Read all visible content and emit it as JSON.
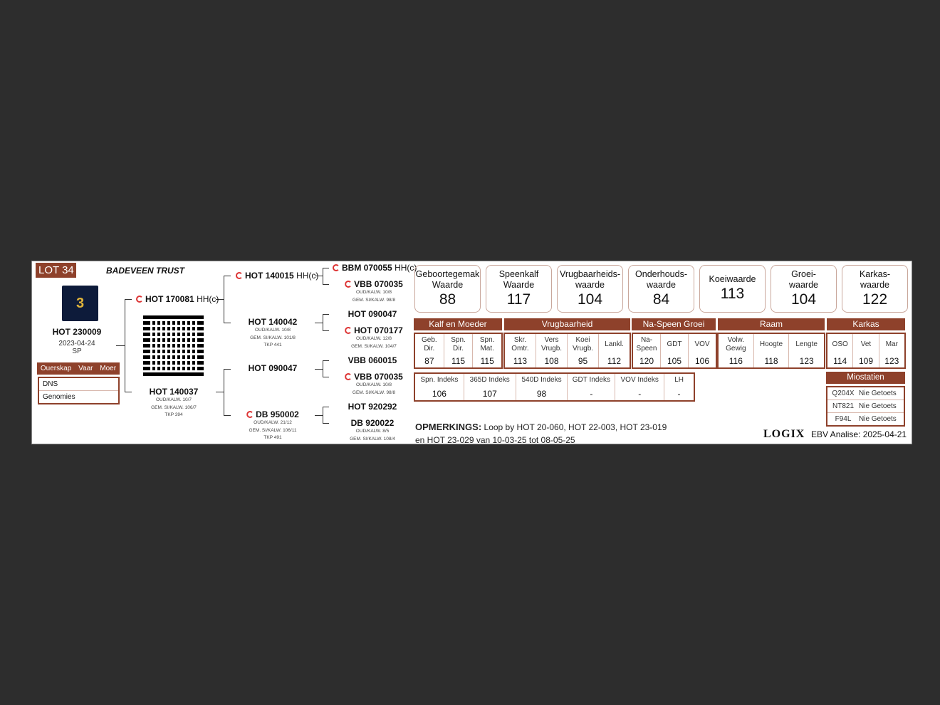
{
  "lot": "LOT 34",
  "owner": "BADEVEEN TRUST",
  "animal": {
    "id": "HOT 230009",
    "date": "2023-04-24",
    "code": "SP"
  },
  "parentage": {
    "header": [
      "Ouerskap",
      "Vaar",
      "Moer"
    ],
    "rows": [
      "DNS",
      "Genomies"
    ]
  },
  "pedigree": {
    "sire": {
      "id": "HOT 170081",
      "hh": "HH(c)"
    },
    "dam": {
      "id": "HOT 140037",
      "l1": "OUD/KALW. 10/7",
      "l2": "GEM. SI/KALW. 106/7",
      "l3": "TKP 394"
    },
    "ss": {
      "id": "HOT 140015",
      "hh": "HH(c)"
    },
    "sd": {
      "id": "HOT 140042",
      "l1": "OUD/KALW. 10/8",
      "l2": "GEM. SI/KALW. 101/8",
      "l3": "TKP 441"
    },
    "ds": {
      "id": "HOT 090047"
    },
    "dd": {
      "id": "DB 950002",
      "l1": "OUD/KALW. 21/12",
      "l2": "GEM. SI/KALW. 106/11",
      "l3": "TKP 491"
    },
    "sss": {
      "id": "BBM 070055",
      "hh": "HH(c)"
    },
    "ssd": {
      "id": "VBB 070035",
      "l1": "OUD/KALW. 10/8",
      "l2": "GEM. SI/KALW. 98/8"
    },
    "sds": {
      "id": "HOT 090047"
    },
    "sdd": {
      "id": "HOT 070177",
      "l1": "OUD/KALW. 12/8",
      "l2": "GEM. SI/KALW. 104/7"
    },
    "dss": {
      "id": "VBB 060015"
    },
    "dsd": {
      "id": "VBB 070035",
      "l1": "OUD/KALW. 10/8",
      "l2": "GEM. SI/KALW. 98/8"
    },
    "dds": {
      "id": "HOT 920292"
    },
    "ddd": {
      "id": "DB 920022",
      "l1": "OUD/KALW. 8/5",
      "l2": "GEM. SI/KALW. 108/4"
    }
  },
  "summary": [
    {
      "l1": "Geboortegemak",
      "l2": "Waarde",
      "v": "88"
    },
    {
      "l1": "Speenkalf",
      "l2": "Waarde",
      "v": "117"
    },
    {
      "l1": "Vrugbaarheids-",
      "l2": "waarde",
      "v": "104"
    },
    {
      "l1": "Onderhouds-",
      "l2": "waarde",
      "v": "84"
    },
    {
      "l1": "Koeiwaarde",
      "l2": "",
      "v": "113"
    },
    {
      "l1": "Groei-",
      "l2": "waarde",
      "v": "104"
    },
    {
      "l1": "Karkas-",
      "l2": "waarde",
      "v": "122"
    }
  ],
  "groups": [
    "Kalf en Moeder",
    "Vrugbaarheid",
    "Na-Speen Groei",
    "Raam",
    "Karkas"
  ],
  "traits": [
    [
      {
        "l": "Geb. Dir.",
        "v": "87"
      },
      {
        "l": "Spn. Dir.",
        "v": "115"
      },
      {
        "l": "Spn. Mat.",
        "v": "115"
      }
    ],
    [
      {
        "l": "Skr. Omtr.",
        "v": "113"
      },
      {
        "l": "Vers Vrugb.",
        "v": "108"
      },
      {
        "l": "Koei Vrugb.",
        "v": "95"
      },
      {
        "l": "Lankl.",
        "v": "112"
      }
    ],
    [
      {
        "l": "Na- Speen",
        "v": "120"
      },
      {
        "l": "GDT",
        "v": "105"
      },
      {
        "l": "VOV",
        "v": "106"
      }
    ],
    [
      {
        "l": "Volw. Gewig",
        "v": "116"
      },
      {
        "l": "Hoogte",
        "v": "118"
      },
      {
        "l": "Lengte",
        "v": "123"
      }
    ],
    [
      {
        "l": "OSO",
        "v": "114"
      },
      {
        "l": "Vet",
        "v": "109"
      },
      {
        "l": "Mar",
        "v": "123"
      }
    ]
  ],
  "indexes": [
    {
      "l": "Spn. Indeks",
      "v": "106"
    },
    {
      "l": "365D Indeks",
      "v": "107"
    },
    {
      "l": "540D Indeks",
      "v": "98"
    },
    {
      "l": "GDT Indeks",
      "v": "-"
    },
    {
      "l": "VOV Indeks",
      "v": "-"
    },
    {
      "l": "LH",
      "v": "-"
    }
  ],
  "miostatien": {
    "title": "Miostatien",
    "rows": [
      {
        "k": "Q204X",
        "v": "Nie Getoets"
      },
      {
        "k": "NT821",
        "v": "Nie Getoets"
      },
      {
        "k": "F94L",
        "v": "Nie Getoets"
      }
    ]
  },
  "remarks": {
    "label": "OPMERKINGS:",
    "line1": "Loop by HOT 20-060, HOT 22-003, HOT 23-019",
    "line2": "en HOT 23-029 van 10-03-25 tot 08-05-25"
  },
  "logo": "LOGIX",
  "analysis": "EBV Analise: 2025-04-21",
  "colors": {
    "accent": "#8e412b",
    "background": "#2d2d2d"
  }
}
